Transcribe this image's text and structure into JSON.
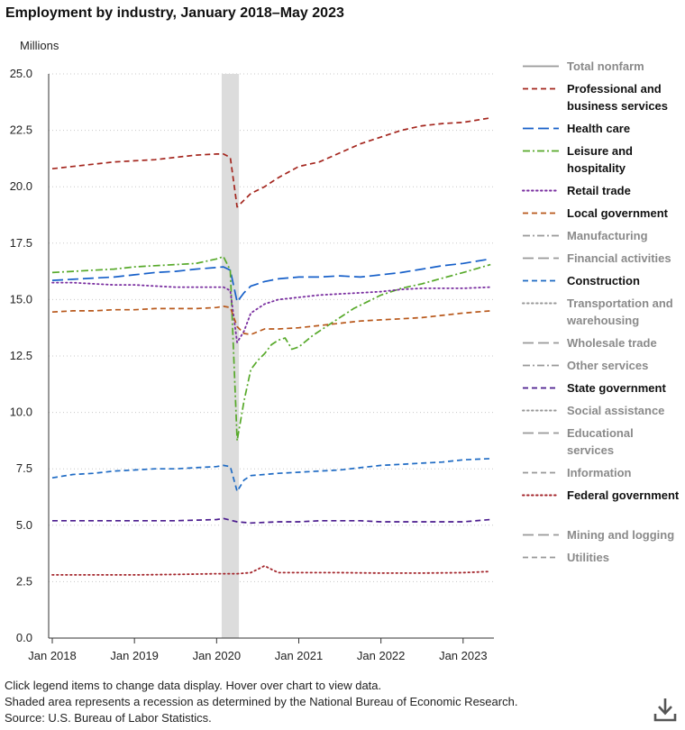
{
  "title": "Employment by industry, January 2018–May 2023",
  "notes": [
    "Click legend items to change data display. Hover over chart to view data.",
    "Shaded area represents a recession as determined by the National Bureau of Economic Research.",
    "Source: U.S. Bureau of Labor Statistics."
  ],
  "download_icon": "download-icon",
  "chart_data": {
    "type": "line",
    "ylabel": "Millions",
    "ylim": [
      0,
      25
    ],
    "yticks": [
      "0.0",
      "2.5",
      "5.0",
      "7.5",
      "10.0",
      "12.5",
      "15.0",
      "17.5",
      "20.0",
      "22.5",
      "25.0"
    ],
    "xlim": [
      "2018-01",
      "2023-05"
    ],
    "xticks": [
      "Jan 2018",
      "Jan 2019",
      "Jan 2020",
      "Jan 2021",
      "Jan 2022",
      "Jan 2023"
    ],
    "recession": [
      "2020-02",
      "2020-04"
    ],
    "grid": "horizontal dotted",
    "legend_position": "right",
    "series": [
      {
        "name": "Total nonfarm",
        "visible": false,
        "color": "#777777",
        "dash": "solid"
      },
      {
        "name": "Professional and business services",
        "visible": true,
        "color": "#a4261e",
        "dash": "dashed",
        "points": [
          [
            "2018-01",
            20.8
          ],
          [
            "2018-04",
            20.9
          ],
          [
            "2018-07",
            21.0
          ],
          [
            "2018-10",
            21.1
          ],
          [
            "2019-01",
            21.15
          ],
          [
            "2019-04",
            21.2
          ],
          [
            "2019-07",
            21.3
          ],
          [
            "2019-10",
            21.4
          ],
          [
            "2020-01",
            21.45
          ],
          [
            "2020-02",
            21.45
          ],
          [
            "2020-03",
            21.3
          ],
          [
            "2020-04",
            19.1
          ],
          [
            "2020-05",
            19.4
          ],
          [
            "2020-06",
            19.7
          ],
          [
            "2020-08",
            20.0
          ],
          [
            "2020-10",
            20.4
          ],
          [
            "2021-01",
            20.9
          ],
          [
            "2021-04",
            21.1
          ],
          [
            "2021-07",
            21.5
          ],
          [
            "2021-10",
            21.9
          ],
          [
            "2022-01",
            22.2
          ],
          [
            "2022-04",
            22.5
          ],
          [
            "2022-07",
            22.7
          ],
          [
            "2022-10",
            22.8
          ],
          [
            "2023-01",
            22.85
          ],
          [
            "2023-05",
            23.05
          ]
        ]
      },
      {
        "name": "Health care",
        "visible": true,
        "color": "#1760c9",
        "dash": "longdash",
        "points": [
          [
            "2018-01",
            15.85
          ],
          [
            "2018-04",
            15.9
          ],
          [
            "2018-07",
            15.95
          ],
          [
            "2018-10",
            16.0
          ],
          [
            "2019-01",
            16.1
          ],
          [
            "2019-04",
            16.2
          ],
          [
            "2019-07",
            16.25
          ],
          [
            "2019-10",
            16.35
          ],
          [
            "2020-01",
            16.42
          ],
          [
            "2020-02",
            16.45
          ],
          [
            "2020-03",
            16.3
          ],
          [
            "2020-04",
            14.9
          ],
          [
            "2020-05",
            15.3
          ],
          [
            "2020-06",
            15.6
          ],
          [
            "2020-08",
            15.8
          ],
          [
            "2020-10",
            15.92
          ],
          [
            "2021-01",
            16.0
          ],
          [
            "2021-04",
            16.0
          ],
          [
            "2021-07",
            16.05
          ],
          [
            "2021-10",
            16.0
          ],
          [
            "2022-01",
            16.1
          ],
          [
            "2022-04",
            16.2
          ],
          [
            "2022-07",
            16.35
          ],
          [
            "2022-10",
            16.5
          ],
          [
            "2023-01",
            16.6
          ],
          [
            "2023-05",
            16.8
          ]
        ]
      },
      {
        "name": "Leisure and hospitality",
        "visible": true,
        "color": "#57a92a",
        "dash": "dashdot",
        "points": [
          [
            "2018-01",
            16.2
          ],
          [
            "2018-04",
            16.25
          ],
          [
            "2018-07",
            16.3
          ],
          [
            "2018-10",
            16.35
          ],
          [
            "2019-01",
            16.45
          ],
          [
            "2019-04",
            16.5
          ],
          [
            "2019-07",
            16.55
          ],
          [
            "2019-10",
            16.6
          ],
          [
            "2020-01",
            16.8
          ],
          [
            "2020-02",
            16.9
          ],
          [
            "2020-03",
            16.3
          ],
          [
            "2020-04",
            8.75
          ],
          [
            "2020-05",
            10.5
          ],
          [
            "2020-06",
            11.9
          ],
          [
            "2020-07",
            12.3
          ],
          [
            "2020-08",
            12.6
          ],
          [
            "2020-09",
            13.0
          ],
          [
            "2020-10",
            13.2
          ],
          [
            "2020-11",
            13.3
          ],
          [
            "2020-12",
            12.8
          ],
          [
            "2021-01",
            12.9
          ],
          [
            "2021-03",
            13.4
          ],
          [
            "2021-06",
            14.0
          ],
          [
            "2021-09",
            14.6
          ],
          [
            "2022-01",
            15.2
          ],
          [
            "2022-04",
            15.5
          ],
          [
            "2022-07",
            15.7
          ],
          [
            "2022-10",
            15.95
          ],
          [
            "2023-01",
            16.2
          ],
          [
            "2023-05",
            16.55
          ]
        ]
      },
      {
        "name": "Retail trade",
        "visible": true,
        "color": "#7a2fa0",
        "dash": "dotted",
        "points": [
          [
            "2018-01",
            15.75
          ],
          [
            "2018-04",
            15.75
          ],
          [
            "2018-07",
            15.7
          ],
          [
            "2018-10",
            15.65
          ],
          [
            "2019-01",
            15.65
          ],
          [
            "2019-04",
            15.6
          ],
          [
            "2019-07",
            15.55
          ],
          [
            "2019-10",
            15.55
          ],
          [
            "2020-01",
            15.55
          ],
          [
            "2020-02",
            15.55
          ],
          [
            "2020-03",
            15.4
          ],
          [
            "2020-04",
            13.1
          ],
          [
            "2020-05",
            13.6
          ],
          [
            "2020-06",
            14.4
          ],
          [
            "2020-08",
            14.8
          ],
          [
            "2020-10",
            15.0
          ],
          [
            "2021-01",
            15.1
          ],
          [
            "2021-04",
            15.2
          ],
          [
            "2021-07",
            15.25
          ],
          [
            "2021-10",
            15.3
          ],
          [
            "2022-01",
            15.35
          ],
          [
            "2022-04",
            15.45
          ],
          [
            "2022-07",
            15.5
          ],
          [
            "2022-10",
            15.5
          ],
          [
            "2023-01",
            15.5
          ],
          [
            "2023-05",
            15.55
          ]
        ]
      },
      {
        "name": "Local government",
        "visible": true,
        "color": "#b8581b",
        "dash": "dashed",
        "points": [
          [
            "2018-01",
            14.45
          ],
          [
            "2018-04",
            14.5
          ],
          [
            "2018-07",
            14.5
          ],
          [
            "2018-10",
            14.55
          ],
          [
            "2019-01",
            14.55
          ],
          [
            "2019-04",
            14.6
          ],
          [
            "2019-07",
            14.6
          ],
          [
            "2019-10",
            14.6
          ],
          [
            "2020-01",
            14.65
          ],
          [
            "2020-02",
            14.7
          ],
          [
            "2020-03",
            14.65
          ],
          [
            "2020-04",
            13.8
          ],
          [
            "2020-05",
            13.5
          ],
          [
            "2020-06",
            13.45
          ],
          [
            "2020-08",
            13.7
          ],
          [
            "2020-10",
            13.7
          ],
          [
            "2021-01",
            13.75
          ],
          [
            "2021-04",
            13.85
          ],
          [
            "2021-07",
            13.95
          ],
          [
            "2021-10",
            14.05
          ],
          [
            "2022-01",
            14.1
          ],
          [
            "2022-04",
            14.15
          ],
          [
            "2022-07",
            14.2
          ],
          [
            "2022-10",
            14.3
          ],
          [
            "2023-01",
            14.4
          ],
          [
            "2023-05",
            14.5
          ]
        ]
      },
      {
        "name": "Manufacturing",
        "visible": false,
        "color": "#999999",
        "dash": "dashdot"
      },
      {
        "name": "Financial activities",
        "visible": false,
        "color": "#999999",
        "dash": "longdash"
      },
      {
        "name": "Construction",
        "visible": true,
        "color": "#1f6bc4",
        "dash": "dashed",
        "points": [
          [
            "2018-01",
            7.1
          ],
          [
            "2018-04",
            7.25
          ],
          [
            "2018-07",
            7.3
          ],
          [
            "2018-10",
            7.4
          ],
          [
            "2019-01",
            7.45
          ],
          [
            "2019-04",
            7.5
          ],
          [
            "2019-07",
            7.5
          ],
          [
            "2019-10",
            7.55
          ],
          [
            "2020-01",
            7.6
          ],
          [
            "2020-02",
            7.65
          ],
          [
            "2020-03",
            7.6
          ],
          [
            "2020-04",
            6.5
          ],
          [
            "2020-05",
            7.0
          ],
          [
            "2020-06",
            7.2
          ],
          [
            "2020-08",
            7.25
          ],
          [
            "2020-10",
            7.3
          ],
          [
            "2021-01",
            7.35
          ],
          [
            "2021-04",
            7.4
          ],
          [
            "2021-07",
            7.45
          ],
          [
            "2021-10",
            7.55
          ],
          [
            "2022-01",
            7.65
          ],
          [
            "2022-04",
            7.7
          ],
          [
            "2022-07",
            7.75
          ],
          [
            "2022-10",
            7.8
          ],
          [
            "2023-01",
            7.9
          ],
          [
            "2023-05",
            7.95
          ]
        ]
      },
      {
        "name": "Transportation and warehousing",
        "visible": false,
        "color": "#999999",
        "dash": "dotted"
      },
      {
        "name": "Wholesale trade",
        "visible": false,
        "color": "#999999",
        "dash": "longdash"
      },
      {
        "name": "Other services",
        "visible": false,
        "color": "#999999",
        "dash": "dashdot"
      },
      {
        "name": "State government",
        "visible": true,
        "color": "#4b1c8e",
        "dash": "dashed",
        "points": [
          [
            "2018-01",
            5.2
          ],
          [
            "2018-07",
            5.2
          ],
          [
            "2019-01",
            5.2
          ],
          [
            "2019-07",
            5.2
          ],
          [
            "2020-01",
            5.25
          ],
          [
            "2020-02",
            5.3
          ],
          [
            "2020-04",
            5.15
          ],
          [
            "2020-06",
            5.1
          ],
          [
            "2020-10",
            5.15
          ],
          [
            "2021-01",
            5.15
          ],
          [
            "2021-04",
            5.2
          ],
          [
            "2021-07",
            5.2
          ],
          [
            "2021-10",
            5.2
          ],
          [
            "2022-01",
            5.15
          ],
          [
            "2022-07",
            5.15
          ],
          [
            "2023-01",
            5.15
          ],
          [
            "2023-05",
            5.25
          ]
        ]
      },
      {
        "name": "Social assistance",
        "visible": false,
        "color": "#999999",
        "dash": "dotted"
      },
      {
        "name": "Educational services",
        "visible": false,
        "color": "#999999",
        "dash": "longdash"
      },
      {
        "name": "Information",
        "visible": false,
        "color": "#999999",
        "dash": "dashed"
      },
      {
        "name": "Federal government",
        "visible": true,
        "color": "#a4262c",
        "dash": "dotted",
        "points": [
          [
            "2018-01",
            2.8
          ],
          [
            "2018-07",
            2.8
          ],
          [
            "2019-01",
            2.8
          ],
          [
            "2019-07",
            2.82
          ],
          [
            "2020-01",
            2.85
          ],
          [
            "2020-04",
            2.85
          ],
          [
            "2020-06",
            2.9
          ],
          [
            "2020-08",
            3.2
          ],
          [
            "2020-10",
            2.9
          ],
          [
            "2021-01",
            2.9
          ],
          [
            "2021-07",
            2.9
          ],
          [
            "2022-01",
            2.88
          ],
          [
            "2022-07",
            2.88
          ],
          [
            "2023-01",
            2.9
          ],
          [
            "2023-05",
            2.95
          ]
        ]
      },
      {
        "name": "Mining and logging",
        "visible": false,
        "color": "#999999",
        "dash": "longdash"
      },
      {
        "name": "Utilities",
        "visible": false,
        "color": "#999999",
        "dash": "dashed"
      }
    ]
  }
}
